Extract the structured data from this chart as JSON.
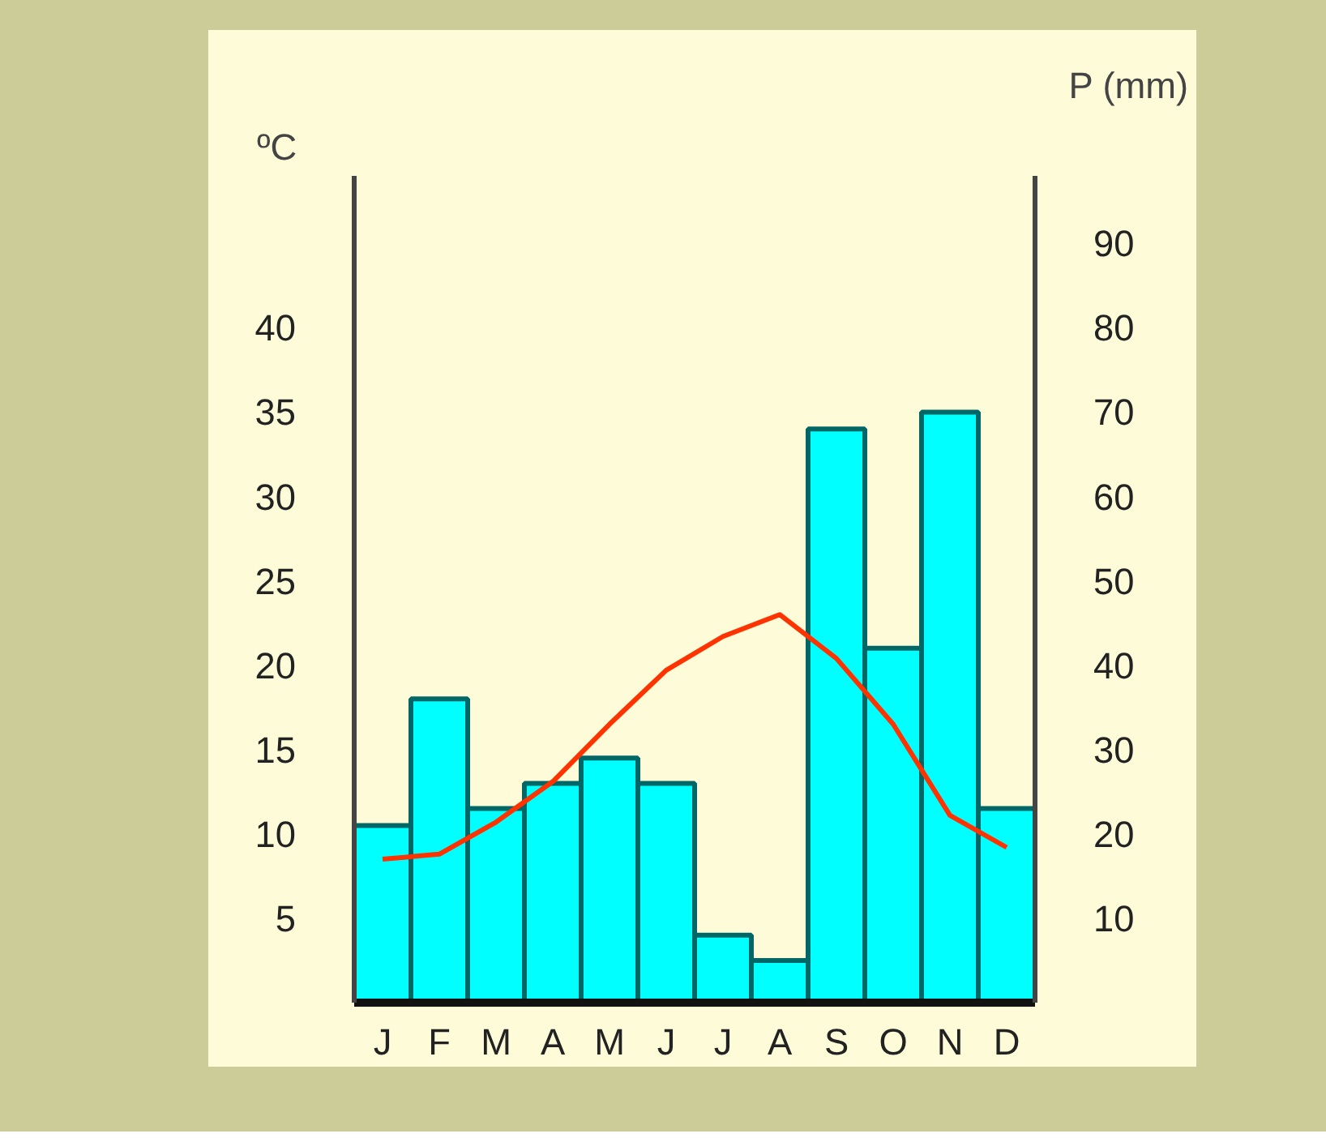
{
  "chart_data": {
    "type": "bar",
    "categories": [
      "J",
      "F",
      "M",
      "A",
      "M",
      "J",
      "J",
      "A",
      "S",
      "O",
      "N",
      "D"
    ],
    "xlabel": null,
    "ylabel": "ºC",
    "y2label": "P (mm)",
    "series": [
      {
        "axis": "y2",
        "color": "#00ffff",
        "values": [
          21,
          36,
          23,
          26,
          29,
          26,
          8,
          5,
          68,
          42,
          70,
          23
        ]
      },
      {
        "type": "line",
        "axis": "y",
        "color": "#ff3300",
        "values": [
          8.5,
          8.8,
          10.7,
          13.1,
          16.5,
          19.7,
          21.7,
          23.0,
          20.4,
          16.5,
          11.1,
          9.2
        ]
      }
    ],
    "ylim": [
      0,
      49
    ],
    "yticks": [
      5,
      10,
      15,
      20,
      25,
      30,
      35,
      40
    ],
    "y2lim": [
      0,
      98
    ],
    "y2ticks": [
      10,
      20,
      30,
      40,
      50,
      60,
      70,
      80,
      90
    ],
    "grid": false
  }
}
